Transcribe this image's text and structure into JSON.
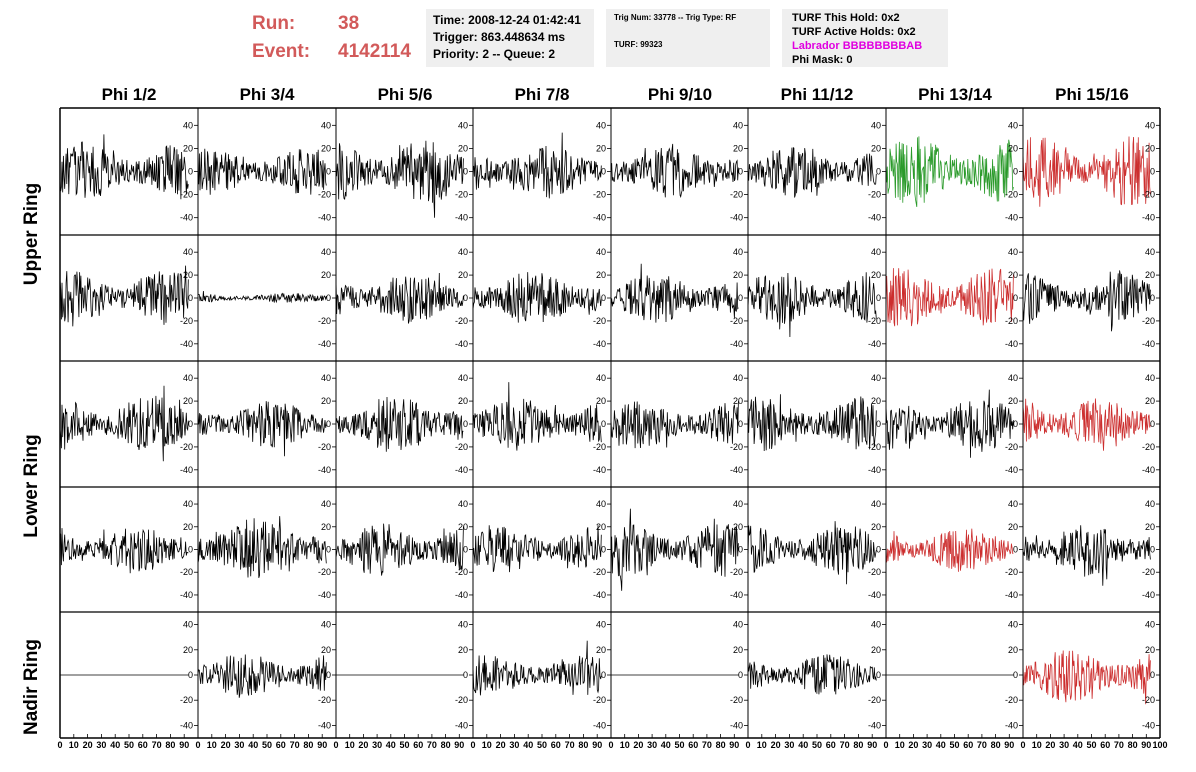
{
  "header": {
    "run_label": "Run:",
    "run_value": "38",
    "event_label": "Event:",
    "event_value": "4142114",
    "time": "Time: 2008-12-24 01:42:41",
    "trigger": "Trigger: 863.448634 ms",
    "priority_queue": "Priority: 2 -- Queue: 2",
    "trig_num_type": "Trig Num: 33778 -- Trig Type: RF",
    "turf": "TURF: 99323",
    "turf_this_hold": "TURF This Hold: 0x2",
    "turf_active_holds": "TURF Active Holds: 0x2",
    "labrador": "Labrador BBBBBBBBAB",
    "phi_mask": "Phi Mask: 0"
  },
  "colors": {
    "normal": "#000000",
    "green": "#2a9a2a",
    "red": "#cc2e2e",
    "run_text": "#d25a5a",
    "labrador": "#e000e0"
  },
  "chart_data": {
    "type": "line",
    "columns": [
      "Phi 1/2",
      "Phi 3/4",
      "Phi 5/6",
      "Phi 7/8",
      "Phi 9/10",
      "Phi 11/12",
      "Phi 13/14",
      "Phi 15/16"
    ],
    "rows": [
      "Upper Ring",
      "Upper Ring",
      "Lower Ring",
      "Lower Ring",
      "Nadir Ring"
    ],
    "ring_labels": [
      "Upper Ring",
      "Lower Ring",
      "Nadir Ring"
    ],
    "xlim": [
      0,
      100
    ],
    "x_ticks": [
      "0",
      "10",
      "20",
      "30",
      "40",
      "50",
      "60",
      "70",
      "80",
      "90",
      "100"
    ],
    "ylim_normal": [
      -55,
      55
    ],
    "y_ticks_normal": [
      -40,
      -20,
      0,
      20,
      40
    ],
    "ylim_nadir": [
      -50,
      50
    ],
    "y_ticks_nadir": [
      -40,
      -20,
      0,
      20,
      40
    ],
    "y_tick_labels": [
      "-40",
      "-20",
      "0",
      "20",
      "40"
    ],
    "waveform_length_x": 93,
    "channel_colors": [
      [
        "normal",
        "normal",
        "normal",
        "normal",
        "normal",
        "normal",
        "green",
        "red"
      ],
      [
        "normal",
        "normal",
        "normal",
        "normal",
        "normal",
        "normal",
        "red",
        "normal"
      ],
      [
        "normal",
        "normal",
        "normal",
        "normal",
        "normal",
        "normal",
        "normal",
        "red"
      ],
      [
        "normal",
        "normal",
        "normal",
        "normal",
        "normal",
        "normal",
        "red",
        "normal"
      ],
      [
        "normal",
        "normal",
        "normal",
        "normal",
        "normal",
        "normal",
        "normal",
        "red"
      ]
    ],
    "channel_amplitude": [
      [
        18,
        15,
        20,
        17,
        17,
        16,
        22,
        22
      ],
      [
        17,
        3,
        16,
        18,
        16,
        17,
        19,
        17
      ],
      [
        18,
        15,
        19,
        17,
        15,
        17,
        17,
        17
      ],
      [
        15,
        20,
        17,
        15,
        17,
        16,
        15,
        17
      ],
      [
        0,
        13,
        0,
        12,
        0,
        12,
        0,
        16
      ]
    ]
  }
}
